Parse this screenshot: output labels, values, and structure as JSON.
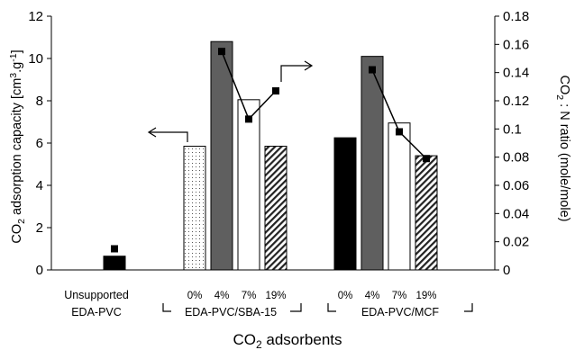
{
  "chart_data": {
    "type": "bar",
    "xlabel": "CO2 adsorbents",
    "ylabel_left": "CO2 adsorption capacity [cm3.g-1]",
    "ylabel_right": "CO2 : N ratio (mole/mole)",
    "ylim_left": [
      0,
      12
    ],
    "ylim_right": [
      0,
      0.18
    ],
    "left_ticks": [
      "0",
      "2",
      "4",
      "6",
      "8",
      "10",
      "12"
    ],
    "right_ticks": [
      "0",
      "0.02",
      "0.04",
      "0.06",
      "0.08",
      "0.1",
      "0.12",
      "0.14",
      "0.16",
      "0.18"
    ],
    "groups": [
      {
        "label_line1": "Unsupported",
        "label_line2": "EDA-PVC"
      },
      {
        "label": "EDA-PVC/SBA-15"
      },
      {
        "label": "EDA-PVC/MCF"
      }
    ],
    "bars": [
      {
        "category": "",
        "value": 0.65,
        "fill": "solid-black"
      },
      {
        "category": "0%",
        "value": 5.85,
        "fill": "dotted"
      },
      {
        "category": "4%",
        "value": 10.8,
        "fill": "dark-gray"
      },
      {
        "category": "7%",
        "value": 8.05,
        "fill": "white"
      },
      {
        "category": "19%",
        "value": 5.85,
        "fill": "hatched"
      },
      {
        "category": "0%",
        "value": 6.25,
        "fill": "solid-black"
      },
      {
        "category": "4%",
        "value": 10.1,
        "fill": "dark-gray"
      },
      {
        "category": "7%",
        "value": 6.95,
        "fill": "white"
      },
      {
        "category": "19%",
        "value": 5.4,
        "fill": "hatched"
      }
    ],
    "ratio_series": {
      "axis": "right",
      "points": [
        {
          "bar_index": 0,
          "value": 0.015
        },
        {
          "bar_index": 2,
          "value": 0.155
        },
        {
          "bar_index": 3,
          "value": 0.107
        },
        {
          "bar_index": 4,
          "value": 0.127
        },
        {
          "bar_index": 6,
          "value": 0.142
        },
        {
          "bar_index": 7,
          "value": 0.098
        },
        {
          "bar_index": 8,
          "value": 0.079
        }
      ],
      "lines": [
        [
          2,
          3,
          4
        ],
        [
          6,
          7,
          8
        ]
      ]
    },
    "annotations": [
      "arrow-left",
      "arrow-right"
    ]
  }
}
